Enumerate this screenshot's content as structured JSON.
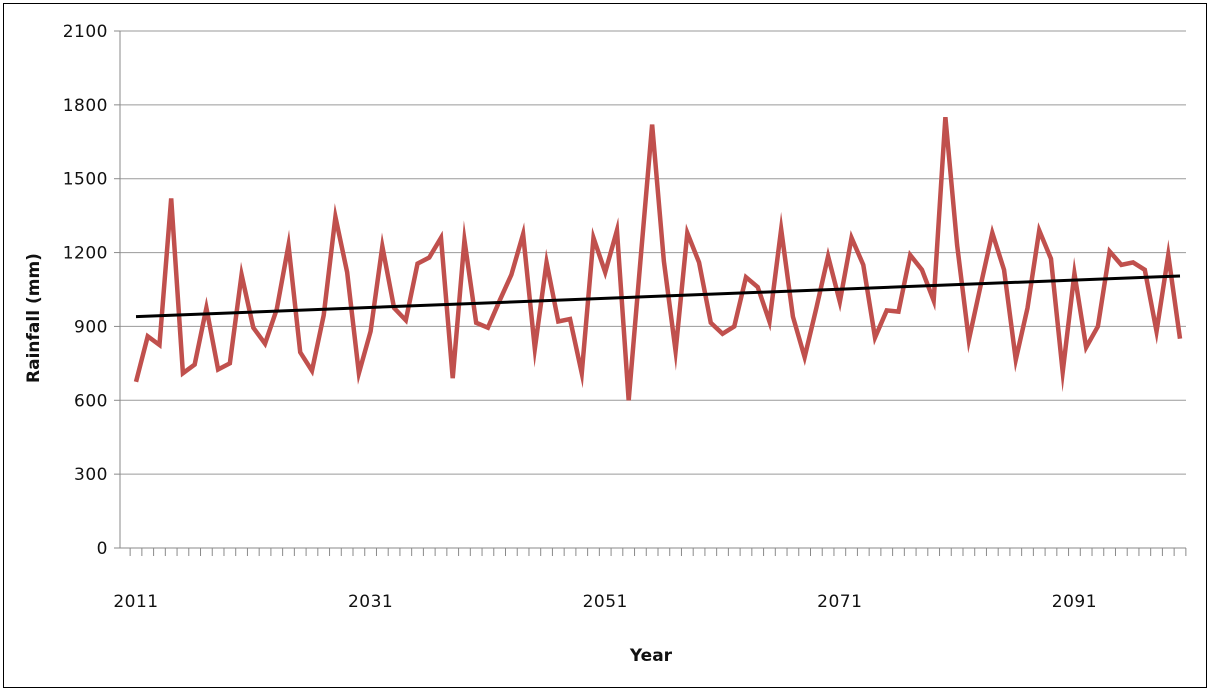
{
  "chart_data": {
    "type": "line",
    "xlabel": "Year",
    "ylabel": "Rainfall (mm)",
    "ylim": [
      0,
      2100
    ],
    "yticks": [
      0,
      300,
      600,
      900,
      1200,
      1500,
      1800,
      2100
    ],
    "xticks": [
      2011,
      2031,
      2051,
      2071,
      2091
    ],
    "xlim": [
      2011,
      2100
    ],
    "grid": true,
    "colors": {
      "series": "#c0504d",
      "trend": "#000000"
    },
    "x": [
      2011,
      2012,
      2013,
      2014,
      2015,
      2016,
      2017,
      2018,
      2019,
      2020,
      2021,
      2022,
      2023,
      2024,
      2025,
      2026,
      2027,
      2028,
      2029,
      2030,
      2031,
      2032,
      2033,
      2034,
      2035,
      2036,
      2037,
      2038,
      2039,
      2040,
      2041,
      2042,
      2043,
      2044,
      2045,
      2046,
      2047,
      2048,
      2049,
      2050,
      2051,
      2052,
      2053,
      2054,
      2055,
      2056,
      2057,
      2058,
      2059,
      2060,
      2061,
      2062,
      2063,
      2064,
      2065,
      2066,
      2067,
      2068,
      2069,
      2070,
      2071,
      2072,
      2073,
      2074,
      2075,
      2076,
      2077,
      2078,
      2079,
      2080,
      2081,
      2082,
      2083,
      2084,
      2085,
      2086,
      2087,
      2088,
      2089,
      2090,
      2091,
      2092,
      2093,
      2094,
      2095,
      2096,
      2097,
      2098,
      2099,
      2100
    ],
    "series": [
      {
        "values": [
          675,
          860,
          825,
          1420,
          710,
          745,
          975,
          725,
          750,
          1110,
          895,
          830,
          970,
          1230,
          795,
          720,
          945,
          1345,
          1120,
          710,
          880,
          1225,
          975,
          925,
          1155,
          1180,
          1260,
          690,
          1250,
          915,
          895,
          1005,
          1110,
          1275,
          810,
          1160,
          920,
          930,
          710,
          1260,
          1120,
          1290,
          600,
          1165,
          1720,
          1165,
          800,
          1280,
          1160,
          915,
          870,
          900,
          1100,
          1060,
          920,
          1295,
          940,
          775,
          975,
          1185,
          1000,
          1260,
          1150,
          855,
          965,
          960,
          1190,
          1130,
          1005,
          1750,
          1230,
          845,
          1065,
          1280,
          1130,
          765,
          975,
          1290,
          1175,
          715,
          1115,
          815,
          900,
          1205,
          1150,
          1160,
          1130,
          880,
          1190,
          850
        ]
      }
    ],
    "trendline": {
      "start": 940,
      "end": 1105
    }
  }
}
